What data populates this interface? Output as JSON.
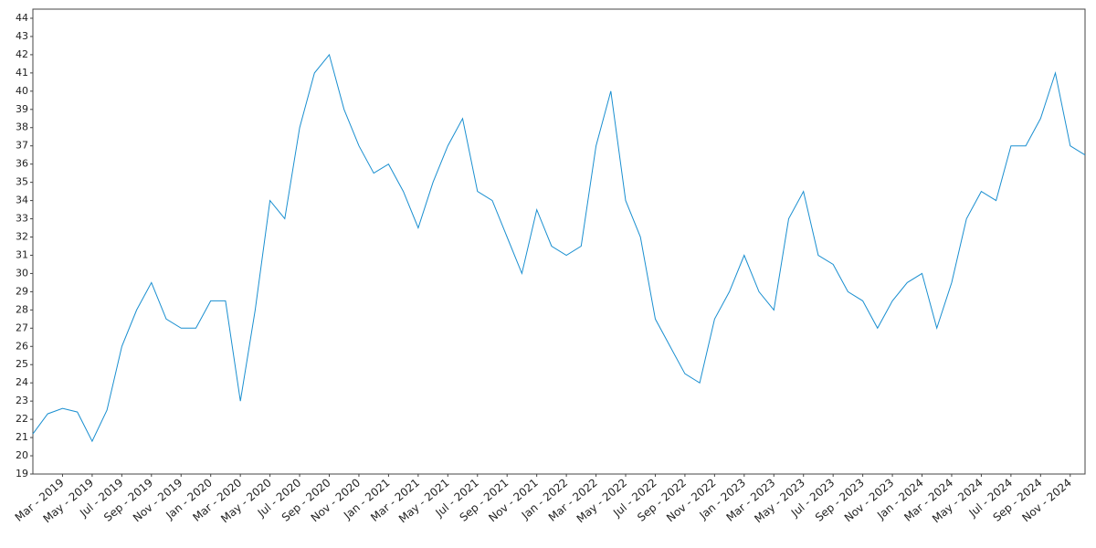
{
  "chart_data": {
    "type": "line",
    "x": [
      "2019-01",
      "2019-02",
      "2019-03",
      "2019-04",
      "2019-05",
      "2019-06",
      "2019-07",
      "2019-08",
      "2019-09",
      "2019-10",
      "2019-11",
      "2019-12",
      "2020-01",
      "2020-02",
      "2020-03",
      "2020-04",
      "2020-05",
      "2020-06",
      "2020-07",
      "2020-08",
      "2020-09",
      "2020-10",
      "2020-11",
      "2020-12",
      "2021-01",
      "2021-02",
      "2021-03",
      "2021-04",
      "2021-05",
      "2021-06",
      "2021-07",
      "2021-08",
      "2021-09",
      "2021-10",
      "2021-11",
      "2021-12",
      "2022-01",
      "2022-02",
      "2022-03",
      "2022-04",
      "2022-05",
      "2022-06",
      "2022-07",
      "2022-08",
      "2022-09",
      "2022-10",
      "2022-11",
      "2022-12",
      "2023-01",
      "2023-02",
      "2023-03",
      "2023-04",
      "2023-05",
      "2023-06",
      "2023-07",
      "2023-08",
      "2023-09",
      "2023-10",
      "2023-11",
      "2023-12",
      "2024-01",
      "2024-02",
      "2024-03",
      "2024-04",
      "2024-05",
      "2024-06",
      "2024-07",
      "2024-08",
      "2024-09",
      "2024-10",
      "2024-11",
      "2024-12"
    ],
    "series": [
      {
        "color": "#1a8fd0",
        "values": [
          21.2,
          22.3,
          22.6,
          22.4,
          20.8,
          22.5,
          26,
          28,
          29.5,
          27.5,
          27,
          27,
          28.5,
          28.5,
          23,
          28,
          34,
          33,
          38,
          41,
          42,
          39,
          37,
          35.5,
          36,
          34.5,
          32.5,
          35,
          37,
          38.5,
          34.5,
          34,
          32,
          30,
          33.5,
          31.5,
          31,
          31.5,
          37,
          40,
          34,
          32,
          27.5,
          26,
          24.5,
          24,
          27.5,
          29,
          31,
          29,
          28,
          33,
          34.5,
          31,
          30.5,
          29,
          28.5,
          27,
          28.5,
          29.5,
          30,
          27,
          29.5,
          33,
          34.5,
          34,
          37,
          37,
          38.5,
          41,
          37,
          36.5
        ]
      }
    ],
    "xlim": [
      "2019-01",
      "2024-12"
    ],
    "xticks": [
      {
        "value": "2019-03",
        "label": "Mar - 2019"
      },
      {
        "value": "2019-05",
        "label": "May - 2019"
      },
      {
        "value": "2019-07",
        "label": "Jul - 2019"
      },
      {
        "value": "2019-09",
        "label": "Sep - 2019"
      },
      {
        "value": "2019-11",
        "label": "Nov - 2019"
      },
      {
        "value": "2020-01",
        "label": "Jan - 2020"
      },
      {
        "value": "2020-03",
        "label": "Mar - 2020"
      },
      {
        "value": "2020-05",
        "label": "May - 2020"
      },
      {
        "value": "2020-07",
        "label": "Jul - 2020"
      },
      {
        "value": "2020-09",
        "label": "Sep - 2020"
      },
      {
        "value": "2020-11",
        "label": "Nov - 2020"
      },
      {
        "value": "2021-01",
        "label": "Jan - 2021"
      },
      {
        "value": "2021-03",
        "label": "Mar - 2021"
      },
      {
        "value": "2021-05",
        "label": "May - 2021"
      },
      {
        "value": "2021-07",
        "label": "Jul - 2021"
      },
      {
        "value": "2021-09",
        "label": "Sep - 2021"
      },
      {
        "value": "2021-11",
        "label": "Nov - 2021"
      },
      {
        "value": "2022-01",
        "label": "Jan - 2022"
      },
      {
        "value": "2022-03",
        "label": "Mar - 2022"
      },
      {
        "value": "2022-05",
        "label": "May - 2022"
      },
      {
        "value": "2022-07",
        "label": "Jul - 2022"
      },
      {
        "value": "2022-09",
        "label": "Sep - 2022"
      },
      {
        "value": "2022-11",
        "label": "Nov - 2022"
      },
      {
        "value": "2023-01",
        "label": "Jan - 2023"
      },
      {
        "value": "2023-03",
        "label": "Mar - 2023"
      },
      {
        "value": "2023-05",
        "label": "May - 2023"
      },
      {
        "value": "2023-07",
        "label": "Jul - 2023"
      },
      {
        "value": "2023-09",
        "label": "Sep - 2023"
      },
      {
        "value": "2023-11",
        "label": "Nov - 2023"
      },
      {
        "value": "2024-01",
        "label": "Jan - 2024"
      },
      {
        "value": "2024-03",
        "label": "Mar - 2024"
      },
      {
        "value": "2024-05",
        "label": "May - 2024"
      },
      {
        "value": "2024-07",
        "label": "Jul - 2024"
      },
      {
        "value": "2024-09",
        "label": "Sep - 2024"
      },
      {
        "value": "2024-11",
        "label": "Nov - 2024"
      }
    ],
    "ylim": [
      19,
      44.5
    ],
    "yticks": [
      19,
      20,
      21,
      22,
      23,
      24,
      25,
      26,
      27,
      28,
      29,
      30,
      31,
      32,
      33,
      34,
      35,
      36,
      37,
      38,
      39,
      40,
      41,
      42,
      43,
      44
    ]
  }
}
